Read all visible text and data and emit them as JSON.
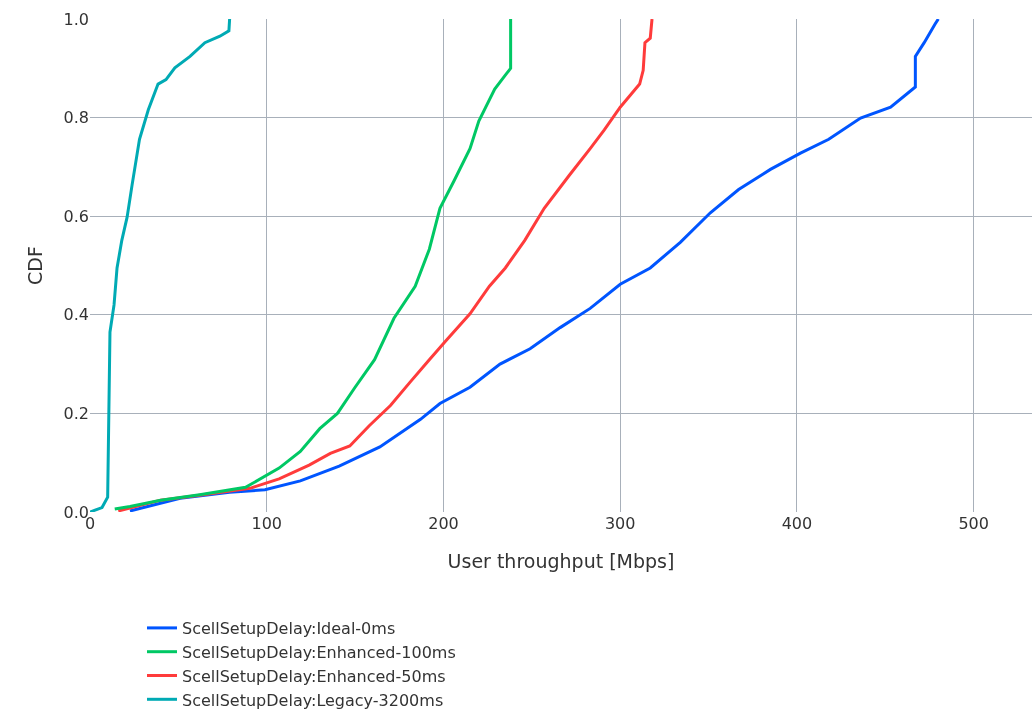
{
  "chart_data": {
    "type": "line",
    "xlabel": "User throughput [Mbps]",
    "ylabel": "CDF",
    "xlim": [
      0,
      533
    ],
    "xticks": [
      0,
      100,
      200,
      300,
      400,
      500
    ],
    "ylim": [
      0,
      1
    ],
    "yticks": [
      {
        "value": 0,
        "label": "0.0"
      },
      {
        "value": 0.2,
        "label": "0.2"
      },
      {
        "value": 0.4,
        "label": "0.4"
      },
      {
        "value": 0.6,
        "label": "0.6"
      },
      {
        "value": 0.8,
        "label": "0.8"
      },
      {
        "value": 1,
        "label": "1.0"
      }
    ],
    "grid": true,
    "legend": "bottom",
    "marker": "none",
    "line_style": "solid",
    "series": [
      {
        "name": "ScellSetupDelay:Ideal-0ms",
        "color": "#0055ff",
        "x": [
          22.6,
          51,
          79,
          99,
          119,
          141,
          164,
          187,
          198,
          215,
          232,
          249,
          266,
          283,
          300,
          317,
          334,
          351,
          367,
          385,
          402,
          418,
          436,
          453,
          467,
          467,
          472,
          478,
          480
        ],
        "values": [
          0.002,
          0.028,
          0.04,
          0.045,
          0.063,
          0.093,
          0.132,
          0.188,
          0.22,
          0.253,
          0.3,
          0.331,
          0.374,
          0.413,
          0.462,
          0.495,
          0.547,
          0.607,
          0.654,
          0.695,
          0.728,
          0.756,
          0.799,
          0.821,
          0.862,
          0.924,
          0.952,
          0.989,
          1.0
        ]
      },
      {
        "name": "ScellSetupDelay:Enhanced-50ms",
        "color": "#ff3b3b",
        "x": [
          16,
          40,
          62,
          90.5,
          107,
          124,
          136,
          147,
          158,
          170,
          181,
          192,
          201,
          215,
          226,
          235,
          246,
          257,
          271,
          283,
          291,
          300,
          311,
          313,
          314,
          317,
          318
        ],
        "values": [
          0.002,
          0.024,
          0.034,
          0.048,
          0.067,
          0.095,
          0.119,
          0.134,
          0.175,
          0.216,
          0.263,
          0.309,
          0.346,
          0.402,
          0.458,
          0.495,
          0.551,
          0.616,
          0.682,
          0.737,
          0.775,
          0.821,
          0.868,
          0.896,
          0.952,
          0.961,
          1.0
        ]
      },
      {
        "name": "ScellSetupDelay:Enhanced-100ms",
        "color": "#00c864",
        "x": [
          14,
          22.6,
          40,
          62,
          88,
          107,
          119,
          130,
          140,
          150,
          161,
          172,
          184,
          192,
          198,
          206,
          215,
          220,
          229,
          235,
          238,
          238
        ],
        "values": [
          0.006,
          0.011,
          0.024,
          0.035,
          0.05,
          0.089,
          0.123,
          0.169,
          0.2,
          0.253,
          0.309,
          0.393,
          0.458,
          0.533,
          0.616,
          0.672,
          0.737,
          0.793,
          0.858,
          0.886,
          0.9,
          1.0
        ]
      },
      {
        "name": "ScellSetupDelay:Legacy-3200ms",
        "color": "#00aab4",
        "x": [
          0,
          6.8,
          10,
          11.3,
          13.6,
          15.3,
          18,
          21,
          23.8,
          28,
          33,
          38.5,
          43,
          48,
          56.6,
          65,
          73.5,
          78.6,
          79
        ],
        "values": [
          0,
          0.009,
          0.03,
          0.365,
          0.42,
          0.495,
          0.551,
          0.598,
          0.663,
          0.756,
          0.816,
          0.868,
          0.877,
          0.901,
          0.924,
          0.952,
          0.965,
          0.976,
          1.0
        ]
      }
    ]
  }
}
